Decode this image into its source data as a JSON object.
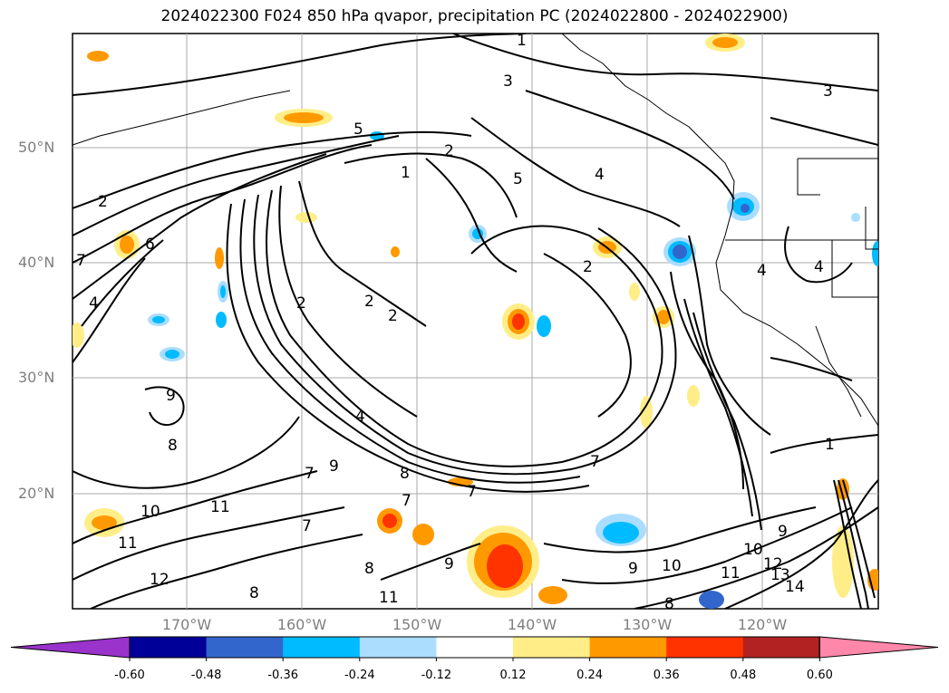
{
  "title": "2024022300 F024 850 hPa qvapor, precipitation PC (2024022800 - 2024022900)",
  "latitude_labels": [
    "50°N",
    "40°N",
    "30°N",
    "20°N"
  ],
  "longitude_labels": [
    "170°W",
    "160°W",
    "150°W",
    "140°W",
    "130°W",
    "120°W"
  ],
  "colorbar": {
    "tick_labels": [
      "-0.60",
      "-0.48",
      "-0.36",
      "-0.24",
      "-0.12",
      "0.12",
      "0.24",
      "0.36",
      "0.48",
      "0.60"
    ],
    "colors": [
      "#9933cc",
      "#000099",
      "#3366cc",
      "#00bbff",
      "#aaddff",
      "#ffffff",
      "#ffee88",
      "#ff9900",
      "#ff3300",
      "#b22222",
      "#ff88aa"
    ]
  },
  "contour_labels": [
    "1",
    "2",
    "3",
    "4",
    "5",
    "6",
    "7",
    "8",
    "9",
    "10",
    "11",
    "12",
    "13",
    "14"
  ],
  "colors": {
    "grid": "#aaaaaa",
    "contour": "#000000",
    "label": "#7f7f7f"
  }
}
